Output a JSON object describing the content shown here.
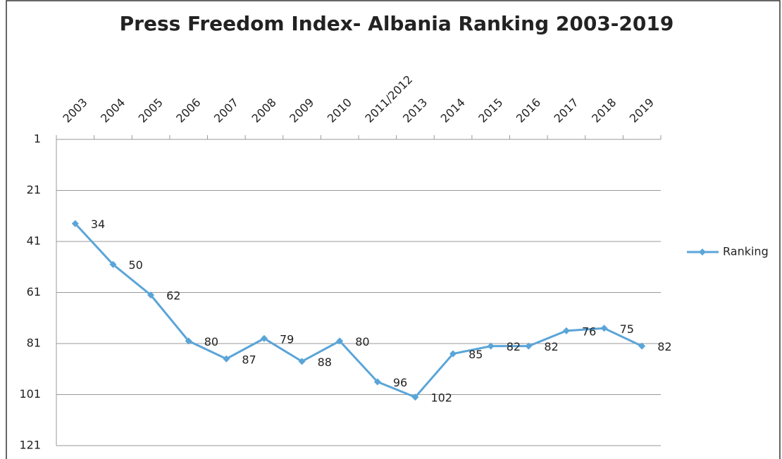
{
  "chart_data": {
    "type": "line",
    "title": "Press Freedom Index- Albania Ranking 2003-2019",
    "categories": [
      "2003",
      "2004",
      "2005",
      "2006",
      "2007",
      "2008",
      "2009",
      "2010",
      "2011/2012",
      "2013",
      "2014",
      "2015",
      "2016",
      "2017",
      "2018",
      "2019"
    ],
    "series": [
      {
        "name": "Ranking",
        "color": "#5aa5d8",
        "values": [
          34,
          50,
          62,
          80,
          87,
          79,
          88,
          80,
          96,
          102,
          85,
          82,
          82,
          76,
          75,
          82
        ]
      }
    ],
    "ylim": [
      1,
      121
    ],
    "yticks": [
      1,
      21,
      41,
      61,
      81,
      101,
      121
    ],
    "y_reversed": true,
    "grid": true,
    "legend": "right"
  }
}
